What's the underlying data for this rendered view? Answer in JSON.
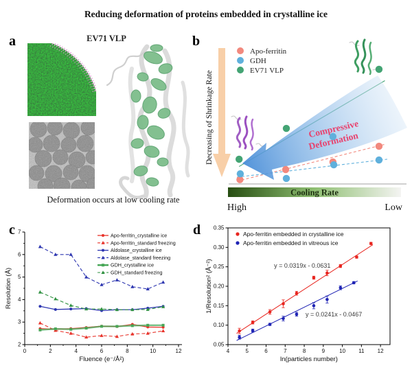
{
  "title": "Reducing deformation of proteins embedded in crystalline ice",
  "panel_a": {
    "label": "a",
    "subtitle": "EV71 VLP",
    "caption": "Deformation occurs at low cooling rate"
  },
  "panel_b": {
    "label": "b",
    "y_axis_label": "Decreasing of Shrinkage Rate",
    "annotation_line1": "Compressive",
    "annotation_line2": "Deformation",
    "annotation_color": "#e8426e",
    "cooling_bar_label": "Cooling Rate",
    "x_left_label": "High",
    "x_right_label": "Low",
    "legend": [
      {
        "label": "Apo-ferritin",
        "color": "#f2897e"
      },
      {
        "label": "GDH",
        "color": "#5fb0dc"
      },
      {
        "label": "EV71 VLP",
        "color": "#44a474"
      }
    ]
  },
  "panel_c": {
    "label": "c"
  },
  "panel_d": {
    "label": "d"
  },
  "chart_data": [
    {
      "panel": "c",
      "type": "line",
      "xlabel": "Fluence (e⁻/Å²)",
      "ylabel": "Resolution (Å)",
      "xlim": [
        0,
        12
      ],
      "ylim": [
        2,
        7
      ],
      "xticks": [
        0,
        2,
        4,
        6,
        8,
        10,
        12
      ],
      "yticks": [
        2,
        3,
        4,
        5,
        6,
        7
      ],
      "grid": false,
      "legend_position": "upper right",
      "x": [
        1.2,
        2.4,
        3.6,
        4.8,
        6.0,
        7.2,
        8.4,
        9.6,
        10.8
      ],
      "series": [
        {
          "name": "Apo-ferritin_crystalline ice",
          "color": "#e8332a",
          "style": "solid",
          "marker": "circle",
          "width": 1.3,
          "values": [
            2.71,
            2.68,
            2.71,
            2.76,
            2.82,
            2.8,
            2.9,
            2.78,
            2.77
          ]
        },
        {
          "name": "Apo-ferritin_standard freezing",
          "color": "#e8332a",
          "style": "dashed",
          "marker": "triangle",
          "width": 1.1,
          "values": [
            2.96,
            2.63,
            2.5,
            2.33,
            2.4,
            2.36,
            2.47,
            2.5,
            2.61
          ]
        },
        {
          "name": "Aldolase_crystalline ice",
          "color": "#2c35b0",
          "style": "solid",
          "marker": "circle",
          "width": 1.3,
          "values": [
            3.7,
            3.56,
            3.58,
            3.6,
            3.51,
            3.55,
            3.55,
            3.62,
            3.7
          ]
        },
        {
          "name": "Aldolase_standard freezing",
          "color": "#2c35b0",
          "style": "dashed",
          "marker": "triangle",
          "width": 1.1,
          "values": [
            6.35,
            6.0,
            6.0,
            5.0,
            4.66,
            4.87,
            4.57,
            4.47,
            4.77
          ]
        },
        {
          "name": "GDH_crystalline ice",
          "color": "#46a656",
          "style": "solid",
          "marker": "square",
          "width": 2.4,
          "values": [
            2.65,
            2.7,
            2.68,
            2.73,
            2.81,
            2.81,
            2.84,
            2.86,
            2.86
          ]
        },
        {
          "name": "GDH_standard freezing",
          "color": "#2f9140",
          "style": "dashed",
          "marker": "triangle",
          "width": 1.1,
          "values": [
            4.33,
            4.03,
            3.74,
            3.58,
            3.58,
            3.55,
            3.55,
            3.56,
            3.68
          ]
        }
      ]
    },
    {
      "panel": "d",
      "type": "scatter",
      "xlabel": "ln(particles number)",
      "ylabel": "1/Resolution² (Å⁻²)",
      "xlim": [
        4,
        12.5
      ],
      "ylim": [
        0.05,
        0.35
      ],
      "xticks": [
        4,
        5,
        6,
        7,
        8,
        9,
        10,
        11,
        12
      ],
      "yticks": [
        0.05,
        0.1,
        0.15,
        0.2,
        0.25,
        0.3,
        0.35
      ],
      "grid": false,
      "legend_position": "upper left",
      "series": [
        {
          "name": "Apo-ferritin embedded in crystalline ice",
          "color": "#e8251f",
          "x": [
            4.6,
            5.3,
            6.2,
            6.9,
            7.6,
            8.5,
            9.2,
            9.9,
            10.75,
            11.5
          ],
          "y": [
            0.085,
            0.107,
            0.134,
            0.155,
            0.182,
            0.222,
            0.234,
            0.252,
            0.275,
            0.31
          ],
          "err": [
            0.007,
            0.004,
            0.006,
            0.01,
            0.005,
            0.004,
            0.007,
            0.004,
            0.003,
            0.003
          ],
          "fit": {
            "slope": 0.0319,
            "intercept": -0.0631,
            "label": "y = 0.0319x - 0.0631",
            "label_pos": [
              7.9,
              0.248
            ],
            "x_range": [
              4.45,
              11.6
            ]
          }
        },
        {
          "name": "Apo-ferritin embedded in vitreous ice",
          "color": "#1f24b4",
          "x": [
            4.6,
            5.3,
            6.2,
            6.9,
            7.6,
            8.5,
            9.2,
            9.9,
            10.6
          ],
          "y": [
            0.069,
            0.086,
            0.102,
            0.117,
            0.128,
            0.15,
            0.166,
            0.196,
            0.209
          ],
          "err": [
            0.005,
            0.004,
            0.003,
            0.006,
            0.005,
            0.008,
            0.009,
            0.005,
            0.003
          ],
          "fit": {
            "slope": 0.0241,
            "intercept": -0.0467,
            "label": "y = 0.0241x - 0.0467",
            "label_pos": [
              9.55,
              0.122
            ],
            "x_range": [
              4.45,
              10.8
            ]
          }
        }
      ]
    },
    {
      "panel": "b",
      "type": "scatter",
      "note": "conceptual diagram; coordinates are relative units (x: cooling rate high to low, y: decrease of shrinkage rate)",
      "xlabel": "Cooling Rate",
      "ylabel": "Decreasing of Shrinkage Rate",
      "series": [
        {
          "name": "Apo-ferritin",
          "color": "#f2897e",
          "line_style": "dashed",
          "points": [
            [
              0.055,
              0.03
            ],
            [
              0.328,
              0.099
            ],
            [
              0.61,
              0.151
            ],
            [
              0.885,
              0.259
            ]
          ],
          "trend": [
            [
              0.037,
              0.019
            ],
            [
              0.926,
              0.274
            ]
          ]
        },
        {
          "name": "GDH",
          "color": "#5fb0dc",
          "line_style": "dashed",
          "points": [
            [
              0.057,
              0.07
            ],
            [
              0.332,
              0.038
            ],
            [
              0.61,
              0.326
            ],
            [
              0.615,
              0.132
            ],
            [
              0.885,
              0.165
            ]
          ],
          "trend": [
            [
              0.037,
              0.047
            ],
            [
              0.934,
              0.17
            ]
          ]
        },
        {
          "name": "EV71 VLP",
          "color": "#44a474",
          "line_style": "solid",
          "points": [
            [
              0.05,
              0.17
            ],
            [
              0.332,
              0.382
            ],
            [
              0.885,
              0.788
            ]
          ],
          "trend": [
            [
              0.05,
              0.12
            ],
            [
              0.92,
              0.71
            ]
          ]
        }
      ]
    }
  ]
}
